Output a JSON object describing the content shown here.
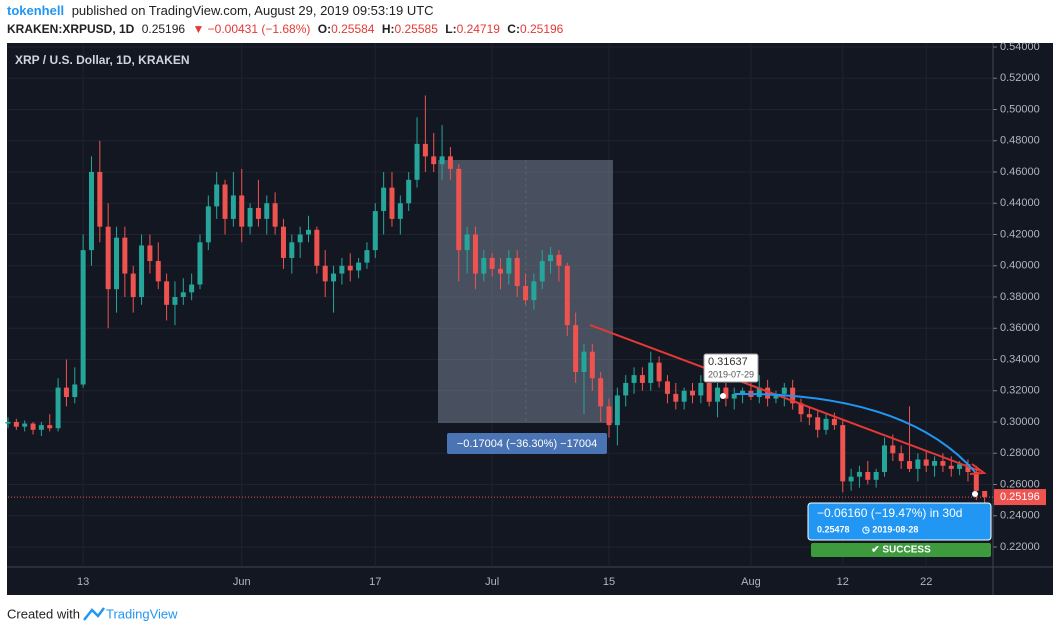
{
  "header": {
    "author": "tokenhell",
    "published": "published on TradingView.com, August 29, 2019 09:53:19 UTC",
    "symbol": "KRAKEN:XRPUSD, 1D",
    "last": "0.25196",
    "change": "▼ −0.00431 (−1.68%)",
    "o_label": "O:",
    "open": "0.25584",
    "h_label": "H:",
    "high": "0.25585",
    "l_label": "L:",
    "low": "0.24719",
    "c_label": "C:",
    "close": "0.25196"
  },
  "chart_data": {
    "type": "candlestick",
    "title": "XRP / U.S. Dollar, 1D, KRAKEN",
    "up_color": "#26a69a",
    "down_color": "#ef5350",
    "candles": [
      [
        0.299,
        0.303,
        0.296,
        0.3
      ],
      [
        0.3,
        0.302,
        0.295,
        0.297
      ],
      [
        0.297,
        0.301,
        0.294,
        0.299
      ],
      [
        0.299,
        0.3,
        0.292,
        0.295
      ],
      [
        0.295,
        0.3,
        0.291,
        0.298
      ],
      [
        0.298,
        0.305,
        0.294,
        0.296
      ],
      [
        0.296,
        0.328,
        0.294,
        0.322
      ],
      [
        0.322,
        0.34,
        0.31,
        0.316
      ],
      [
        0.316,
        0.335,
        0.312,
        0.324
      ],
      [
        0.324,
        0.42,
        0.322,
        0.41
      ],
      [
        0.41,
        0.47,
        0.4,
        0.46
      ],
      [
        0.46,
        0.48,
        0.415,
        0.425
      ],
      [
        0.425,
        0.44,
        0.36,
        0.385
      ],
      [
        0.385,
        0.425,
        0.37,
        0.418
      ],
      [
        0.418,
        0.425,
        0.38,
        0.395
      ],
      [
        0.395,
        0.4,
        0.37,
        0.38
      ],
      [
        0.38,
        0.42,
        0.375,
        0.413
      ],
      [
        0.413,
        0.42,
        0.395,
        0.403
      ],
      [
        0.403,
        0.415,
        0.385,
        0.39
      ],
      [
        0.39,
        0.395,
        0.365,
        0.375
      ],
      [
        0.375,
        0.39,
        0.362,
        0.38
      ],
      [
        0.38,
        0.392,
        0.375,
        0.383
      ],
      [
        0.383,
        0.395,
        0.378,
        0.388
      ],
      [
        0.388,
        0.42,
        0.385,
        0.415
      ],
      [
        0.415,
        0.445,
        0.41,
        0.438
      ],
      [
        0.438,
        0.46,
        0.43,
        0.452
      ],
      [
        0.452,
        0.455,
        0.42,
        0.43
      ],
      [
        0.43,
        0.46,
        0.425,
        0.445
      ],
      [
        0.445,
        0.462,
        0.415,
        0.425
      ],
      [
        0.425,
        0.44,
        0.42,
        0.437
      ],
      [
        0.437,
        0.455,
        0.425,
        0.43
      ],
      [
        0.43,
        0.445,
        0.42,
        0.44
      ],
      [
        0.44,
        0.447,
        0.42,
        0.425
      ],
      [
        0.425,
        0.43,
        0.398,
        0.405
      ],
      [
        0.405,
        0.42,
        0.395,
        0.415
      ],
      [
        0.415,
        0.425,
        0.405,
        0.42
      ],
      [
        0.42,
        0.432,
        0.415,
        0.423
      ],
      [
        0.423,
        0.425,
        0.395,
        0.4
      ],
      [
        0.4,
        0.41,
        0.38,
        0.39
      ],
      [
        0.39,
        0.4,
        0.37,
        0.395
      ],
      [
        0.395,
        0.405,
        0.388,
        0.4
      ],
      [
        0.4,
        0.408,
        0.39,
        0.397
      ],
      [
        0.397,
        0.405,
        0.392,
        0.402
      ],
      [
        0.402,
        0.415,
        0.398,
        0.41
      ],
      [
        0.41,
        0.44,
        0.405,
        0.435
      ],
      [
        0.435,
        0.46,
        0.42,
        0.45
      ],
      [
        0.45,
        0.46,
        0.425,
        0.43
      ],
      [
        0.43,
        0.445,
        0.42,
        0.44
      ],
      [
        0.44,
        0.46,
        0.435,
        0.455
      ],
      [
        0.455,
        0.495,
        0.45,
        0.478
      ],
      [
        0.478,
        0.509,
        0.46,
        0.47
      ],
      [
        0.47,
        0.485,
        0.46,
        0.465
      ],
      [
        0.465,
        0.49,
        0.455,
        0.47
      ],
      [
        0.47,
        0.476,
        0.455,
        0.462
      ],
      [
        0.462,
        0.465,
        0.39,
        0.41
      ],
      [
        0.41,
        0.425,
        0.395,
        0.42
      ],
      [
        0.42,
        0.425,
        0.385,
        0.395
      ],
      [
        0.395,
        0.41,
        0.39,
        0.405
      ],
      [
        0.405,
        0.408,
        0.393,
        0.398
      ],
      [
        0.398,
        0.405,
        0.385,
        0.395
      ],
      [
        0.395,
        0.41,
        0.388,
        0.405
      ],
      [
        0.405,
        0.41,
        0.38,
        0.387
      ],
      [
        0.387,
        0.395,
        0.375,
        0.378
      ],
      [
        0.378,
        0.395,
        0.372,
        0.39
      ],
      [
        0.39,
        0.41,
        0.385,
        0.403
      ],
      [
        0.403,
        0.412,
        0.395,
        0.407
      ],
      [
        0.407,
        0.41,
        0.39,
        0.4
      ],
      [
        0.4,
        0.402,
        0.355,
        0.362
      ],
      [
        0.362,
        0.37,
        0.325,
        0.332
      ],
      [
        0.332,
        0.35,
        0.305,
        0.345
      ],
      [
        0.345,
        0.35,
        0.32,
        0.328
      ],
      [
        0.328,
        0.332,
        0.3,
        0.31
      ],
      [
        0.31,
        0.315,
        0.29,
        0.298
      ],
      [
        0.298,
        0.322,
        0.285,
        0.317
      ],
      [
        0.317,
        0.33,
        0.31,
        0.325
      ],
      [
        0.325,
        0.335,
        0.318,
        0.33
      ],
      [
        0.33,
        0.335,
        0.32,
        0.325
      ],
      [
        0.325,
        0.345,
        0.32,
        0.338
      ],
      [
        0.338,
        0.342,
        0.322,
        0.326
      ],
      [
        0.326,
        0.33,
        0.312,
        0.318
      ],
      [
        0.318,
        0.325,
        0.308,
        0.313
      ],
      [
        0.313,
        0.322,
        0.308,
        0.32
      ],
      [
        0.32,
        0.325,
        0.312,
        0.317
      ],
      [
        0.317,
        0.33,
        0.312,
        0.325
      ],
      [
        0.325,
        0.328,
        0.31,
        0.313
      ],
      [
        0.313,
        0.325,
        0.303,
        0.322
      ],
      [
        0.322,
        0.325,
        0.31,
        0.315
      ],
      [
        0.315,
        0.322,
        0.308,
        0.318
      ],
      [
        0.318,
        0.322,
        0.312,
        0.32
      ],
      [
        0.32,
        0.325,
        0.314,
        0.316
      ],
      [
        0.316,
        0.33,
        0.312,
        0.322
      ],
      [
        0.322,
        0.327,
        0.31,
        0.315
      ],
      [
        0.315,
        0.32,
        0.312,
        0.318
      ],
      [
        0.318,
        0.325,
        0.31,
        0.322
      ],
      [
        0.322,
        0.327,
        0.308,
        0.312
      ],
      [
        0.312,
        0.315,
        0.3,
        0.305
      ],
      [
        0.305,
        0.31,
        0.298,
        0.303
      ],
      [
        0.303,
        0.307,
        0.29,
        0.295
      ],
      [
        0.295,
        0.305,
        0.292,
        0.302
      ],
      [
        0.302,
        0.306,
        0.295,
        0.298
      ],
      [
        0.298,
        0.302,
        0.255,
        0.262
      ],
      [
        0.262,
        0.27,
        0.256,
        0.265
      ],
      [
        0.265,
        0.272,
        0.258,
        0.268
      ],
      [
        0.268,
        0.275,
        0.26,
        0.263
      ],
      [
        0.263,
        0.27,
        0.258,
        0.268
      ],
      [
        0.268,
        0.29,
        0.265,
        0.285
      ],
      [
        0.285,
        0.292,
        0.275,
        0.28
      ],
      [
        0.28,
        0.285,
        0.27,
        0.275
      ],
      [
        0.275,
        0.31,
        0.268,
        0.27
      ],
      [
        0.27,
        0.28,
        0.262,
        0.276
      ],
      [
        0.276,
        0.282,
        0.268,
        0.272
      ],
      [
        0.272,
        0.278,
        0.265,
        0.275
      ],
      [
        0.275,
        0.28,
        0.268,
        0.272
      ],
      [
        0.272,
        0.278,
        0.265,
        0.27
      ],
      [
        0.27,
        0.275,
        0.266,
        0.273
      ],
      [
        0.273,
        0.276,
        0.262,
        0.268
      ],
      [
        0.268,
        0.272,
        0.25,
        0.256
      ],
      [
        0.25584,
        0.25585,
        0.24719,
        0.25196
      ]
    ],
    "xlim": [
      0,
      118
    ],
    "xticks": [
      {
        "value": 9,
        "label": "13"
      },
      {
        "value": 28,
        "label": "Jun"
      },
      {
        "value": 44,
        "label": "17"
      },
      {
        "value": 58,
        "label": "Jul"
      },
      {
        "value": 72,
        "label": "15"
      },
      {
        "value": 89,
        "label": "Aug"
      },
      {
        "value": 100,
        "label": "12"
      },
      {
        "value": 110,
        "label": "22"
      }
    ],
    "ylim": [
      0.2072,
      0.54256
    ],
    "yticks": [
      {
        "value": 0.22,
        "label": "0.22000"
      },
      {
        "value": 0.24,
        "label": "0.24000"
      },
      {
        "value": 0.26,
        "label": "0.26000"
      },
      {
        "value": 0.28,
        "label": "0.28000"
      },
      {
        "value": 0.3,
        "label": "0.30000"
      },
      {
        "value": 0.32,
        "label": "0.32000"
      },
      {
        "value": 0.34,
        "label": "0.34000"
      },
      {
        "value": 0.36,
        "label": "0.36000"
      },
      {
        "value": 0.38,
        "label": "0.38000"
      },
      {
        "value": 0.4,
        "label": "0.40000"
      },
      {
        "value": 0.42,
        "label": "0.42000"
      },
      {
        "value": 0.44,
        "label": "0.44000"
      },
      {
        "value": 0.46,
        "label": "0.46000"
      },
      {
        "value": 0.48,
        "label": "0.48000"
      },
      {
        "value": 0.5,
        "label": "0.50000"
      },
      {
        "value": 0.52,
        "label": "0.52000"
      },
      {
        "value": 0.54,
        "label": "0.54000"
      }
    ],
    "grid": true,
    "last_price": 0.25196,
    "annotations": {
      "range_label": "−0.17004 (−36.30%) −17004",
      "callout_price": "0.31637",
      "callout_date": "2019-07-29",
      "forecast_change": "−0.06160 (−19.47%) in 30d",
      "forecast_price": "0.25478",
      "forecast_date": "◷ 2019-08-28",
      "forecast_status": "✔ SUCCESS"
    }
  },
  "footer": {
    "created": "Created with",
    "brand": "TradingView"
  }
}
